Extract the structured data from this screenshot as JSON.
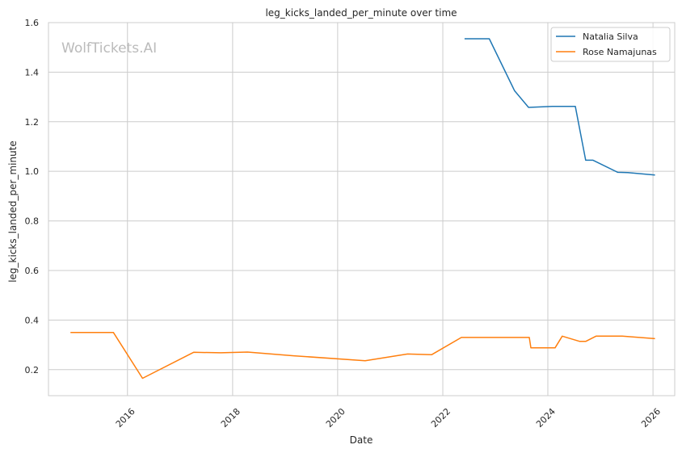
{
  "watermark": "WolfTickets.AI",
  "chart_data": {
    "type": "line",
    "title": "leg_kicks_landed_per_minute over time",
    "xlabel": "Date",
    "ylabel": "leg_kicks_landed_per_minute",
    "xlim": [
      "2014-07-01",
      "2026-06-01"
    ],
    "ylim": [
      0.095,
      1.6
    ],
    "x_ticks": [
      {
        "date": "2016-01-01",
        "label": "2016"
      },
      {
        "date": "2018-01-01",
        "label": "2018"
      },
      {
        "date": "2020-01-01",
        "label": "2020"
      },
      {
        "date": "2022-01-01",
        "label": "2022"
      },
      {
        "date": "2024-01-01",
        "label": "2024"
      },
      {
        "date": "2026-01-01",
        "label": "2026"
      }
    ],
    "y_ticks": [
      {
        "value": 0.2,
        "label": "0.2"
      },
      {
        "value": 0.4,
        "label": "0.4"
      },
      {
        "value": 0.6,
        "label": "0.6"
      },
      {
        "value": 0.8,
        "label": "0.8"
      },
      {
        "value": 1.0,
        "label": "1.0"
      },
      {
        "value": 1.2,
        "label": "1.2"
      },
      {
        "value": 1.4,
        "label": "1.4"
      },
      {
        "value": 1.6,
        "label": "1.6"
      }
    ],
    "grid": true,
    "legend_position": "top-right",
    "series": [
      {
        "name": "Natalia Silva",
        "color": "#1f77b4",
        "points": [
          {
            "x": "2022-06-01",
            "y": 1.535
          },
          {
            "x": "2022-11-20",
            "y": 1.535
          },
          {
            "x": "2023-05-15",
            "y": 1.325
          },
          {
            "x": "2023-08-20",
            "y": 1.258
          },
          {
            "x": "2024-02-01",
            "y": 1.262
          },
          {
            "x": "2024-07-10",
            "y": 1.262
          },
          {
            "x": "2024-09-20",
            "y": 1.045
          },
          {
            "x": "2024-11-10",
            "y": 1.045
          },
          {
            "x": "2025-05-01",
            "y": 0.996
          },
          {
            "x": "2025-07-10",
            "y": 0.995
          },
          {
            "x": "2026-01-15",
            "y": 0.985
          }
        ]
      },
      {
        "name": "Rose Namajunas",
        "color": "#ff7f0e",
        "points": [
          {
            "x": "2014-12-01",
            "y": 0.35
          },
          {
            "x": "2015-09-25",
            "y": 0.35
          },
          {
            "x": "2016-04-15",
            "y": 0.165
          },
          {
            "x": "2017-04-05",
            "y": 0.27
          },
          {
            "x": "2017-10-10",
            "y": 0.268
          },
          {
            "x": "2018-04-15",
            "y": 0.271
          },
          {
            "x": "2019-03-01",
            "y": 0.256
          },
          {
            "x": "2020-07-10",
            "y": 0.236
          },
          {
            "x": "2021-05-01",
            "y": 0.263
          },
          {
            "x": "2021-10-15",
            "y": 0.26
          },
          {
            "x": "2022-05-10",
            "y": 0.33
          },
          {
            "x": "2023-08-25",
            "y": 0.33
          },
          {
            "x": "2023-09-05",
            "y": 0.288
          },
          {
            "x": "2024-02-20",
            "y": 0.288
          },
          {
            "x": "2024-04-10",
            "y": 0.335
          },
          {
            "x": "2024-08-10",
            "y": 0.314
          },
          {
            "x": "2024-09-20",
            "y": 0.314
          },
          {
            "x": "2024-12-01",
            "y": 0.335
          },
          {
            "x": "2025-06-01",
            "y": 0.335
          },
          {
            "x": "2026-01-15",
            "y": 0.325
          }
        ]
      }
    ]
  }
}
